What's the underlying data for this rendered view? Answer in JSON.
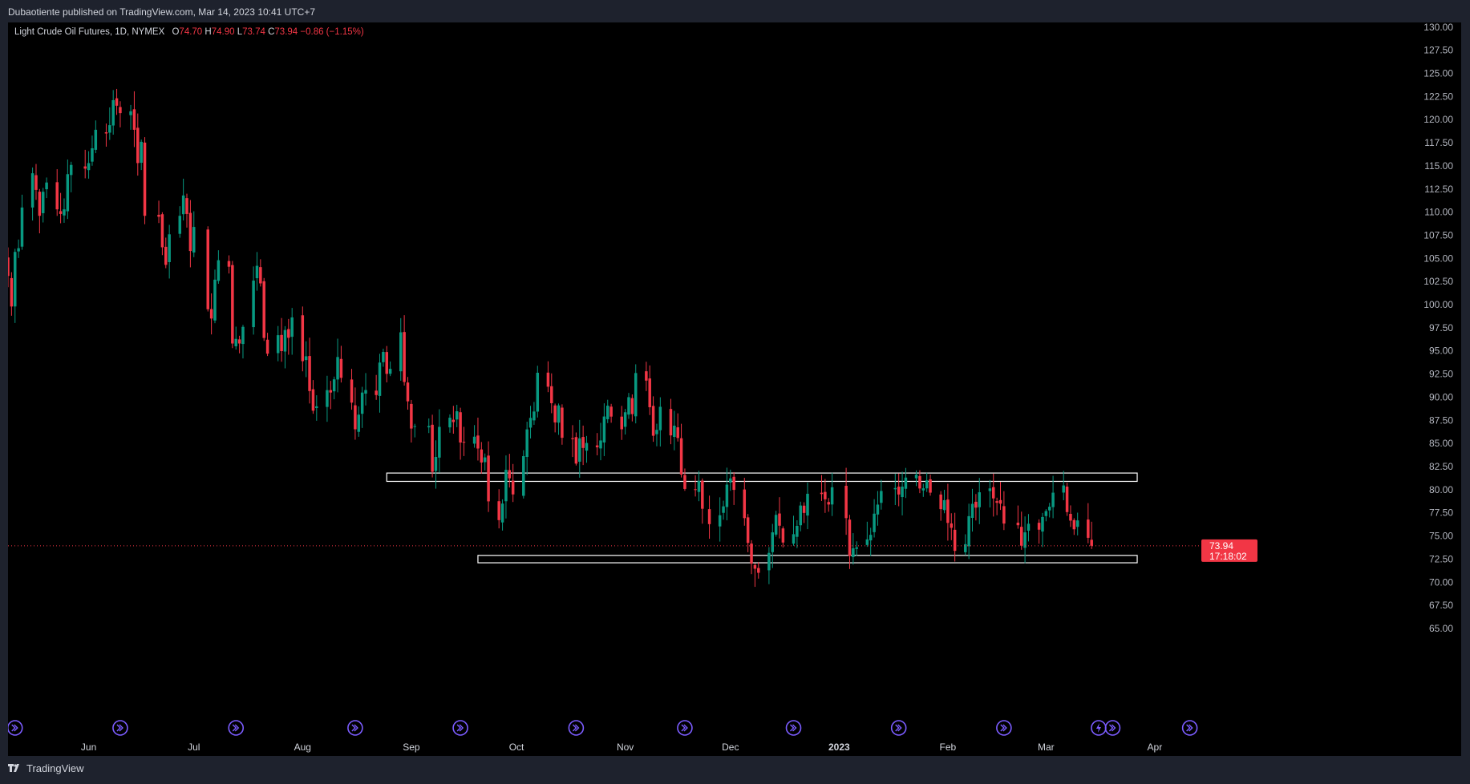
{
  "publisher": "Dubaotiente published on TradingView.com, Mar 14, 2023 10:41 UTC+7",
  "legend": {
    "symbol": "Light Crude Oil Futures, 1D, NYMEX",
    "open_label": "O",
    "open": "74.70",
    "high_label": "H",
    "high": "74.90",
    "low_label": "L",
    "low": "73.74",
    "close_label": "C",
    "close": "73.94",
    "change": "−0.86 (−1.15%)"
  },
  "price_tag": {
    "price": "73.94",
    "countdown": "17:18:02"
  },
  "footer": {
    "brand": "TradingView"
  },
  "colors": {
    "up": "#089981",
    "down": "#f23645",
    "background": "#000000",
    "frame": "#1e222d",
    "text": "#d1d4dc",
    "event_icon": "#7b5cff"
  },
  "chart_data": {
    "type": "candlestick",
    "y_ticks": [
      "65.00",
      "67.50",
      "70.00",
      "72.50",
      "75.00",
      "77.50",
      "80.00",
      "82.50",
      "85.00",
      "87.50",
      "90.00",
      "92.50",
      "95.00",
      "97.50",
      "100.00",
      "102.50",
      "105.00",
      "107.50",
      "110.00",
      "112.50",
      "115.00",
      "117.50",
      "120.00",
      "122.50",
      "125.00",
      "127.50",
      "130.00"
    ],
    "ylim": [
      65,
      130.5
    ],
    "x_ticks": [
      {
        "label": "Jun",
        "bold": false
      },
      {
        "label": "Jul",
        "bold": false
      },
      {
        "label": "Aug",
        "bold": false
      },
      {
        "label": "Sep",
        "bold": false
      },
      {
        "label": "Oct",
        "bold": false
      },
      {
        "label": "Nov",
        "bold": false
      },
      {
        "label": "Dec",
        "bold": false
      },
      {
        "label": "2023",
        "bold": true
      },
      {
        "label": "Feb",
        "bold": false
      },
      {
        "label": "Mar",
        "bold": false
      },
      {
        "label": "Apr",
        "bold": false
      }
    ],
    "x_tick_dates": [
      "2022-06-01",
      "2022-07-01",
      "2022-08-01",
      "2022-09-01",
      "2022-10-01",
      "2022-11-01",
      "2022-12-01",
      "2023-01-01",
      "2023-02-01",
      "2023-03-01",
      "2023-04-01"
    ],
    "date_range": [
      "2022-05-09",
      "2023-04-12"
    ],
    "current_price": 73.94,
    "zones": [
      {
        "from": "2022-08-25",
        "to": "2023-03-27",
        "low": 80.9,
        "high": 81.8
      },
      {
        "from": "2022-09-20",
        "to": "2023-03-27",
        "low": 72.1,
        "high": 72.9
      }
    ],
    "event_markers": [
      {
        "date": "2022-05-11",
        "kind": "split"
      },
      {
        "date": "2022-06-10",
        "kind": "split"
      },
      {
        "date": "2022-07-13",
        "kind": "split"
      },
      {
        "date": "2022-08-16",
        "kind": "split"
      },
      {
        "date": "2022-09-15",
        "kind": "split"
      },
      {
        "date": "2022-10-18",
        "kind": "split"
      },
      {
        "date": "2022-11-18",
        "kind": "split"
      },
      {
        "date": "2022-12-19",
        "kind": "split"
      },
      {
        "date": "2023-01-18",
        "kind": "split"
      },
      {
        "date": "2023-02-17",
        "kind": "split"
      },
      {
        "date": "2023-03-16",
        "kind": "flash"
      },
      {
        "date": "2023-03-20",
        "kind": "split"
      },
      {
        "date": "2023-04-11",
        "kind": "split"
      }
    ],
    "closes": [
      [
        "2022-05-09",
        103.1
      ],
      [
        "2022-05-10",
        99.8
      ],
      [
        "2022-05-11",
        105.7
      ],
      [
        "2022-05-12",
        106.1
      ],
      [
        "2022-05-13",
        110.5
      ],
      [
        "2022-05-16",
        114.2
      ],
      [
        "2022-05-17",
        112.4
      ],
      [
        "2022-05-18",
        109.6
      ],
      [
        "2022-05-19",
        112.2
      ],
      [
        "2022-05-20",
        113.2
      ],
      [
        "2022-05-23",
        110.3
      ],
      [
        "2022-05-24",
        109.8
      ],
      [
        "2022-05-25",
        110.3
      ],
      [
        "2022-05-26",
        114.1
      ],
      [
        "2022-05-27",
        115.1
      ],
      [
        "2022-05-31",
        114.7
      ],
      [
        "2022-06-01",
        115.3
      ],
      [
        "2022-06-02",
        116.9
      ],
      [
        "2022-06-03",
        118.9
      ],
      [
        "2022-06-06",
        118.5
      ],
      [
        "2022-06-07",
        119.4
      ],
      [
        "2022-06-08",
        122.1
      ],
      [
        "2022-06-09",
        121.5
      ],
      [
        "2022-06-10",
        120.7
      ],
      [
        "2022-06-13",
        120.9
      ],
      [
        "2022-06-14",
        118.9
      ],
      [
        "2022-06-15",
        115.3
      ],
      [
        "2022-06-16",
        117.6
      ],
      [
        "2022-06-17",
        109.6
      ],
      [
        "2022-06-21",
        109.5
      ],
      [
        "2022-06-22",
        106.2
      ],
      [
        "2022-06-23",
        104.3
      ],
      [
        "2022-06-24",
        107.6
      ],
      [
        "2022-06-27",
        109.6
      ],
      [
        "2022-06-28",
        111.8
      ],
      [
        "2022-06-29",
        109.8
      ],
      [
        "2022-06-30",
        105.8
      ],
      [
        "2022-07-01",
        108.4
      ],
      [
        "2022-07-05",
        99.5
      ],
      [
        "2022-07-06",
        98.5
      ],
      [
        "2022-07-07",
        102.7
      ],
      [
        "2022-07-08",
        104.8
      ],
      [
        "2022-07-11",
        104.1
      ],
      [
        "2022-07-12",
        95.8
      ],
      [
        "2022-07-13",
        96.3
      ],
      [
        "2022-07-14",
        95.8
      ],
      [
        "2022-07-15",
        97.6
      ],
      [
        "2022-07-18",
        102.6
      ],
      [
        "2022-07-19",
        104.2
      ],
      [
        "2022-07-20",
        102.3
      ],
      [
        "2022-07-21",
        96.4
      ],
      [
        "2022-07-22",
        94.7
      ],
      [
        "2022-07-25",
        96.7
      ],
      [
        "2022-07-26",
        94.98
      ],
      [
        "2022-07-27",
        97.26
      ],
      [
        "2022-07-28",
        96.42
      ],
      [
        "2022-07-29",
        98.62
      ],
      [
        "2022-08-01",
        93.89
      ],
      [
        "2022-08-02",
        94.42
      ],
      [
        "2022-08-03",
        90.66
      ],
      [
        "2022-08-04",
        88.54
      ],
      [
        "2022-08-05",
        89.01
      ],
      [
        "2022-08-08",
        90.76
      ],
      [
        "2022-08-09",
        90.5
      ],
      [
        "2022-08-10",
        91.93
      ],
      [
        "2022-08-11",
        94.34
      ],
      [
        "2022-08-12",
        92.09
      ],
      [
        "2022-08-15",
        89.41
      ],
      [
        "2022-08-16",
        86.53
      ],
      [
        "2022-08-17",
        88.11
      ],
      [
        "2022-08-18",
        90.5
      ],
      [
        "2022-08-19",
        90.77
      ],
      [
        "2022-08-22",
        90.23
      ],
      [
        "2022-08-23",
        93.74
      ],
      [
        "2022-08-24",
        94.89
      ],
      [
        "2022-08-25",
        92.52
      ],
      [
        "2022-08-26",
        93.06
      ],
      [
        "2022-08-29",
        97.01
      ],
      [
        "2022-08-30",
        91.64
      ],
      [
        "2022-08-31",
        89.55
      ],
      [
        "2022-09-01",
        86.61
      ],
      [
        "2022-09-02",
        86.87
      ],
      [
        "2022-09-06",
        86.88
      ],
      [
        "2022-09-07",
        81.94
      ],
      [
        "2022-09-08",
        83.54
      ],
      [
        "2022-09-09",
        86.79
      ],
      [
        "2022-09-12",
        87.78
      ],
      [
        "2022-09-13",
        87.31
      ],
      [
        "2022-09-14",
        88.48
      ],
      [
        "2022-09-15",
        85.1
      ],
      [
        "2022-09-16",
        85.11
      ],
      [
        "2022-09-19",
        85.73
      ],
      [
        "2022-09-20",
        84.45
      ],
      [
        "2022-09-21",
        82.94
      ],
      [
        "2022-09-22",
        83.49
      ],
      [
        "2022-09-23",
        78.74
      ],
      [
        "2022-09-26",
        76.71
      ],
      [
        "2022-09-27",
        78.5
      ],
      [
        "2022-09-28",
        82.15
      ],
      [
        "2022-09-29",
        81.23
      ],
      [
        "2022-09-30",
        79.49
      ],
      [
        "2022-10-03",
        83.63
      ],
      [
        "2022-10-04",
        86.52
      ],
      [
        "2022-10-05",
        87.76
      ],
      [
        "2022-10-06",
        88.45
      ],
      [
        "2022-10-07",
        92.64
      ],
      [
        "2022-10-10",
        91.13
      ],
      [
        "2022-10-11",
        89.35
      ],
      [
        "2022-10-12",
        87.27
      ],
      [
        "2022-10-13",
        89.11
      ],
      [
        "2022-10-14",
        85.61
      ],
      [
        "2022-10-17",
        85.46
      ],
      [
        "2022-10-18",
        82.82
      ],
      [
        "2022-10-19",
        85.55
      ],
      [
        "2022-10-20",
        84.51
      ],
      [
        "2022-10-21",
        85.05
      ],
      [
        "2022-10-24",
        84.58
      ],
      [
        "2022-10-25",
        85.32
      ],
      [
        "2022-10-26",
        87.91
      ],
      [
        "2022-10-27",
        89.08
      ],
      [
        "2022-10-28",
        87.9
      ],
      [
        "2022-10-31",
        86.53
      ],
      [
        "2022-11-01",
        88.37
      ],
      [
        "2022-11-02",
        90.0
      ],
      [
        "2022-11-03",
        88.17
      ],
      [
        "2022-11-04",
        92.61
      ],
      [
        "2022-11-07",
        91.79
      ],
      [
        "2022-11-08",
        88.91
      ],
      [
        "2022-11-09",
        85.83
      ],
      [
        "2022-11-10",
        86.47
      ],
      [
        "2022-11-11",
        88.96
      ],
      [
        "2022-11-14",
        85.87
      ],
      [
        "2022-11-15",
        86.92
      ],
      [
        "2022-11-16",
        85.59
      ],
      [
        "2022-11-17",
        81.64
      ],
      [
        "2022-11-18",
        80.08
      ],
      [
        "2022-11-21",
        80.04
      ],
      [
        "2022-11-22",
        80.95
      ],
      [
        "2022-11-23",
        77.94
      ],
      [
        "2022-11-25",
        76.28
      ],
      [
        "2022-11-28",
        77.24
      ],
      [
        "2022-11-29",
        78.2
      ],
      [
        "2022-11-30",
        80.55
      ],
      [
        "2022-12-01",
        81.22
      ],
      [
        "2022-12-02",
        79.98
      ],
      [
        "2022-12-05",
        76.93
      ],
      [
        "2022-12-06",
        74.25
      ],
      [
        "2022-12-07",
        72.01
      ],
      [
        "2022-12-08",
        71.46
      ],
      [
        "2022-12-09",
        71.02
      ],
      [
        "2022-12-12",
        73.17
      ],
      [
        "2022-12-13",
        75.39
      ],
      [
        "2022-12-14",
        77.28
      ],
      [
        "2022-12-15",
        76.11
      ],
      [
        "2022-12-16",
        74.29
      ],
      [
        "2022-12-19",
        75.19
      ],
      [
        "2022-12-20",
        76.09
      ],
      [
        "2022-12-21",
        78.29
      ],
      [
        "2022-12-22",
        77.49
      ],
      [
        "2022-12-23",
        79.56
      ],
      [
        "2022-12-27",
        79.53
      ],
      [
        "2022-12-28",
        78.96
      ],
      [
        "2022-12-29",
        78.4
      ],
      [
        "2022-12-30",
        80.26
      ],
      [
        "2023-01-03",
        76.93
      ],
      [
        "2023-01-04",
        72.84
      ],
      [
        "2023-01-05",
        73.67
      ],
      [
        "2023-01-06",
        73.77
      ],
      [
        "2023-01-09",
        74.63
      ],
      [
        "2023-01-10",
        75.12
      ],
      [
        "2023-01-11",
        77.41
      ],
      [
        "2023-01-12",
        78.39
      ],
      [
        "2023-01-13",
        79.86
      ],
      [
        "2023-01-17",
        80.18
      ],
      [
        "2023-01-18",
        79.48
      ],
      [
        "2023-01-19",
        80.33
      ],
      [
        "2023-01-20",
        81.31
      ],
      [
        "2023-01-23",
        81.62
      ],
      [
        "2023-01-24",
        80.13
      ],
      [
        "2023-01-25",
        80.15
      ],
      [
        "2023-01-26",
        81.01
      ],
      [
        "2023-01-27",
        79.68
      ],
      [
        "2023-01-30",
        77.9
      ],
      [
        "2023-01-31",
        78.87
      ],
      [
        "2023-02-01",
        76.41
      ],
      [
        "2023-02-02",
        75.88
      ],
      [
        "2023-02-03",
        73.39
      ],
      [
        "2023-02-06",
        74.11
      ],
      [
        "2023-02-07",
        77.14
      ],
      [
        "2023-02-08",
        78.47
      ],
      [
        "2023-02-09",
        78.06
      ],
      [
        "2023-02-10",
        79.72
      ],
      [
        "2023-02-13",
        80.14
      ],
      [
        "2023-02-14",
        79.06
      ],
      [
        "2023-02-15",
        78.59
      ],
      [
        "2023-02-16",
        78.49
      ],
      [
        "2023-02-17",
        76.34
      ],
      [
        "2023-02-21",
        76.16
      ],
      [
        "2023-02-22",
        73.95
      ],
      [
        "2023-02-23",
        75.39
      ],
      [
        "2023-02-24",
        76.32
      ],
      [
        "2023-02-27",
        75.68
      ],
      [
        "2023-02-28",
        77.05
      ],
      [
        "2023-03-01",
        77.69
      ],
      [
        "2023-03-02",
        78.16
      ],
      [
        "2023-03-03",
        79.68
      ],
      [
        "2023-03-06",
        80.46
      ],
      [
        "2023-03-07",
        77.58
      ],
      [
        "2023-03-08",
        76.66
      ],
      [
        "2023-03-09",
        75.72
      ],
      [
        "2023-03-10",
        76.68
      ],
      [
        "2023-03-13",
        74.8
      ],
      [
        "2023-03-14",
        73.94
      ]
    ]
  }
}
